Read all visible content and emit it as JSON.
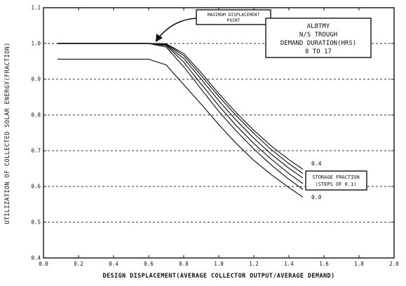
{
  "chart_data": {
    "type": "line",
    "title": "",
    "xlabel": "DESIGN DISPLACEMENT(AVERAGE COLLECTOR OUTPUT/AVERAGE DEMAND)",
    "ylabel": "UTILIZATION OF COLLECTED SOLAR ENERGY(FRACTION)",
    "xlim": [
      0.0,
      2.0
    ],
    "ylim": [
      0.4,
      1.1
    ],
    "x_ticks": [
      "0.0",
      "0.2",
      "0.4",
      "0.6",
      "0.8",
      "1.0",
      "1.2",
      "1.4",
      "1.6",
      "1.8",
      "2.0"
    ],
    "y_ticks": [
      "0.4",
      "0.5",
      "0.6",
      "0.7",
      "0.8",
      "0.9",
      "1.0",
      "1.1"
    ],
    "grid": "horizontal dashed",
    "series": [
      {
        "x": [
          0.08,
          0.6,
          0.7,
          0.8,
          0.9,
          1.0,
          1.1,
          1.2,
          1.3,
          1.4,
          1.48
        ],
        "y": [
          0.956,
          0.956,
          0.94,
          0.885,
          0.83,
          0.773,
          0.72,
          0.673,
          0.633,
          0.597,
          0.57
        ]
      },
      {
        "x": [
          0.08,
          0.6,
          0.7,
          0.8,
          0.9,
          1.0,
          1.1,
          1.2,
          1.3,
          1.4,
          1.48
        ],
        "y": [
          1.0,
          1.0,
          0.99,
          0.935,
          0.872,
          0.81,
          0.755,
          0.705,
          0.66,
          0.62,
          0.592
        ]
      },
      {
        "x": [
          0.08,
          0.6,
          0.7,
          0.8,
          0.9,
          1.0,
          1.1,
          1.2,
          1.3,
          1.4,
          1.48
        ],
        "y": [
          1.0,
          1.0,
          0.994,
          0.948,
          0.886,
          0.826,
          0.77,
          0.72,
          0.676,
          0.636,
          0.608
        ]
      },
      {
        "x": [
          0.08,
          0.6,
          0.7,
          0.8,
          0.9,
          1.0,
          1.1,
          1.2,
          1.3,
          1.4,
          1.48
        ],
        "y": [
          1.0,
          1.0,
          0.996,
          0.958,
          0.9,
          0.84,
          0.785,
          0.735,
          0.69,
          0.651,
          0.624
        ]
      },
      {
        "x": [
          0.08,
          0.6,
          0.7,
          0.8,
          0.9,
          1.0,
          1.1,
          1.2,
          1.3,
          1.4,
          1.48
        ],
        "y": [
          1.0,
          1.0,
          0.998,
          0.966,
          0.91,
          0.852,
          0.798,
          0.748,
          0.703,
          0.664,
          0.636
        ]
      },
      {
        "x": [
          0.08,
          0.6,
          0.7,
          0.8,
          0.9,
          1.0,
          1.1,
          1.2,
          1.3,
          1.4,
          1.48
        ],
        "y": [
          1.0,
          1.0,
          0.999,
          0.972,
          0.918,
          0.86,
          0.806,
          0.757,
          0.713,
          0.675,
          0.648
        ]
      }
    ],
    "annotations": {
      "max_point_label": [
        "MAXIMUM DISPLACEMENT",
        "POINT"
      ],
      "info_box": [
        "ALBTMY",
        "N/S TROUGH",
        "DEMAND DURATION(HRS)",
        "8 TO 17"
      ],
      "storage_box": [
        "STORAGE FRACTION",
        "(STEPS OF 0.1)"
      ],
      "top_series_label": "0.4",
      "bottom_series_label": "0.0"
    }
  }
}
